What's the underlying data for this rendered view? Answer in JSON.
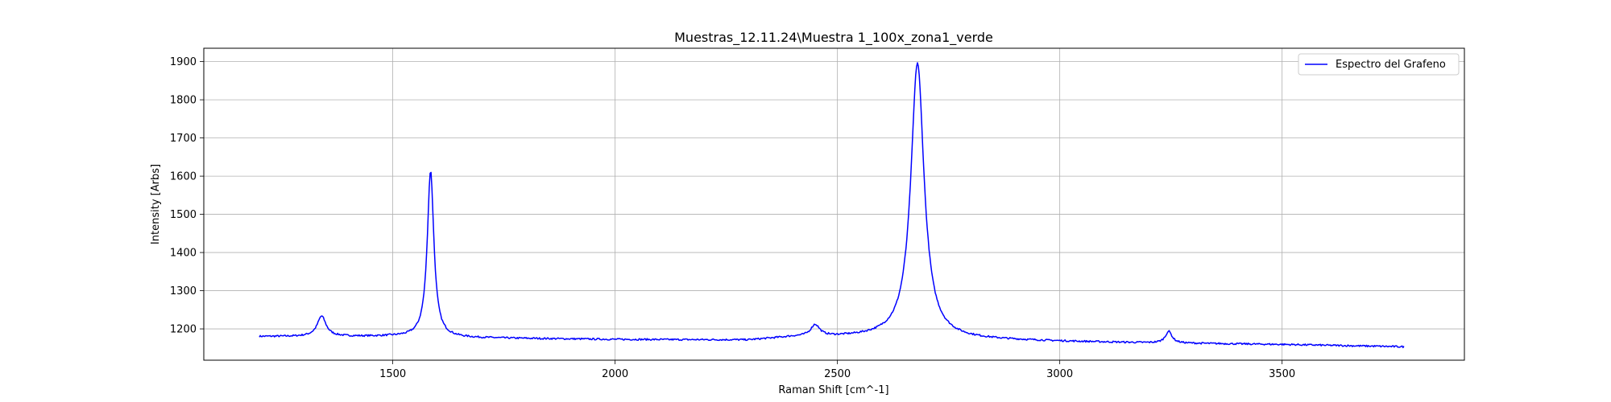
{
  "chart_data": {
    "type": "line",
    "title": "Muestras_12.11.24\\Muestra 1_100x_zona1_verde",
    "xlabel": "Raman Shift [cm^-1]",
    "ylabel": "Intensity [Arbs]",
    "xlim": [
      1075,
      3910
    ],
    "ylim": [
      1118,
      1935
    ],
    "xticks": [
      1500,
      2000,
      2500,
      3000,
      3500
    ],
    "yticks": [
      1200,
      1300,
      1400,
      1500,
      1600,
      1700,
      1800,
      1900
    ],
    "grid": true,
    "legend_position": "top-right",
    "series": [
      {
        "name": "Espectro del Grafeno",
        "color": "#0000ff",
        "x_range": [
          1200,
          3775
        ],
        "baseline": [
          [
            1200,
            1180
          ],
          [
            1500,
            1180
          ],
          [
            1600,
            1177
          ],
          [
            2000,
            1172
          ],
          [
            2300,
            1170
          ],
          [
            2400,
            1178
          ],
          [
            2600,
            1178
          ],
          [
            2800,
            1172
          ],
          [
            3000,
            1167
          ],
          [
            3200,
            1163
          ],
          [
            3500,
            1159
          ],
          [
            3775,
            1153
          ]
        ],
        "peaks": [
          {
            "center": 1340,
            "height": 1233,
            "width": 12
          },
          {
            "center": 1585,
            "height": 1614,
            "width": 9
          },
          {
            "center": 2450,
            "height": 1208,
            "width": 12
          },
          {
            "center": 2680,
            "height": 1897,
            "width": 18
          },
          {
            "center": 3245,
            "height": 1193,
            "width": 9
          }
        ]
      }
    ]
  }
}
